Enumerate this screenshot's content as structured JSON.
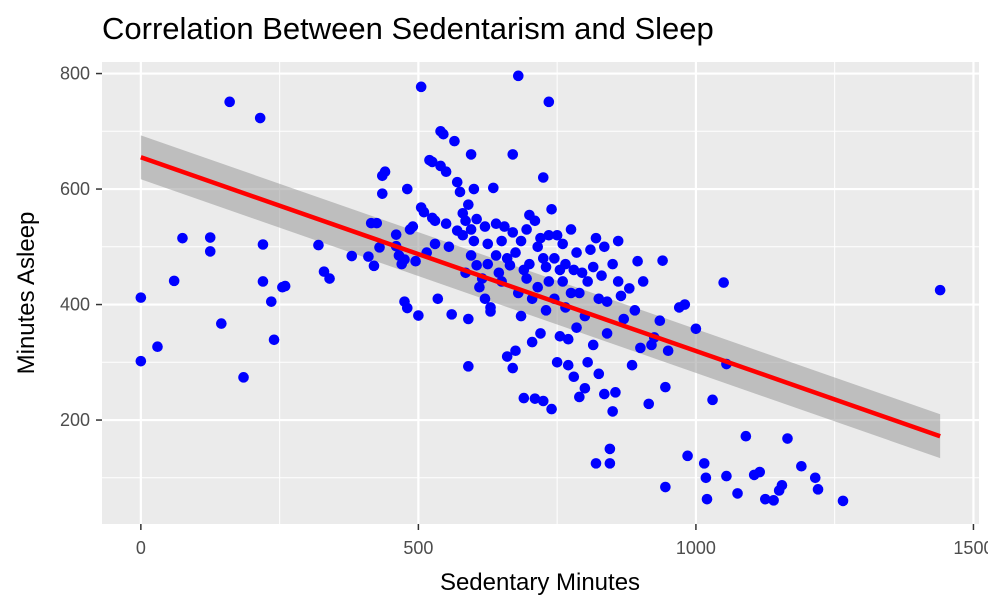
{
  "chart_data": {
    "type": "scatter",
    "title": "Correlation Between Sedentarism and Sleep",
    "xlabel": "Sedentary Minutes",
    "ylabel": "Minutes Asleep",
    "xlim": [
      -70,
      1510
    ],
    "ylim": [
      20,
      820
    ],
    "x_ticks": [
      0,
      500,
      1000,
      1500
    ],
    "y_ticks": [
      200,
      400,
      600,
      800
    ],
    "x_minor_ticks": [
      250,
      750,
      1250
    ],
    "y_minor_ticks": [
      100,
      300,
      500,
      700
    ],
    "grid": true,
    "legend": "none",
    "colors": {
      "points": "#0000FF",
      "trend": "#FF0000",
      "band": "#999999",
      "panel": "#EBEBEB",
      "gridline": "#FFFFFF"
    },
    "trend_line": {
      "x": [
        0,
        1440
      ],
      "y": [
        655,
        172
      ]
    },
    "confidence_band": {
      "x": [
        0,
        1440
      ],
      "upper": [
        693,
        210
      ],
      "lower": [
        617,
        134
      ]
    },
    "series": [
      {
        "points": [
          [
            0,
            412
          ],
          [
            0,
            302
          ],
          [
            30,
            327
          ],
          [
            60,
            441
          ],
          [
            75,
            515
          ],
          [
            125,
            516
          ],
          [
            125,
            492
          ],
          [
            145,
            367
          ],
          [
            160,
            751
          ],
          [
            185,
            274
          ],
          [
            215,
            723
          ],
          [
            220,
            504
          ],
          [
            220,
            440
          ],
          [
            235,
            405
          ],
          [
            240,
            339
          ],
          [
            255,
            430
          ],
          [
            260,
            432
          ],
          [
            320,
            503
          ],
          [
            330,
            457
          ],
          [
            340,
            445
          ],
          [
            380,
            484
          ],
          [
            410,
            483
          ],
          [
            415,
            541
          ],
          [
            420,
            467
          ],
          [
            425,
            541
          ],
          [
            430,
            499
          ],
          [
            435,
            592
          ],
          [
            435,
            623
          ],
          [
            440,
            630
          ],
          [
            460,
            521
          ],
          [
            460,
            501
          ],
          [
            465,
            485
          ],
          [
            470,
            470
          ],
          [
            475,
            405
          ],
          [
            475,
            478
          ],
          [
            480,
            394
          ],
          [
            480,
            600
          ],
          [
            485,
            530
          ],
          [
            490,
            535
          ],
          [
            495,
            475
          ],
          [
            500,
            381
          ],
          [
            505,
            777
          ],
          [
            505,
            568
          ],
          [
            510,
            560
          ],
          [
            515,
            490
          ],
          [
            520,
            650
          ],
          [
            525,
            647
          ],
          [
            525,
            550
          ],
          [
            530,
            545
          ],
          [
            530,
            505
          ],
          [
            535,
            410
          ],
          [
            540,
            700
          ],
          [
            540,
            640
          ],
          [
            545,
            695
          ],
          [
            550,
            630
          ],
          [
            550,
            540
          ],
          [
            555,
            500
          ],
          [
            560,
            383
          ],
          [
            565,
            683
          ],
          [
            570,
            612
          ],
          [
            570,
            528
          ],
          [
            575,
            595
          ],
          [
            580,
            520
          ],
          [
            580,
            558
          ],
          [
            585,
            545
          ],
          [
            585,
            455
          ],
          [
            590,
            375
          ],
          [
            590,
            293
          ],
          [
            590,
            573
          ],
          [
            595,
            530
          ],
          [
            595,
            485
          ],
          [
            595,
            660
          ],
          [
            600,
            600
          ],
          [
            600,
            510
          ],
          [
            605,
            548
          ],
          [
            605,
            468
          ],
          [
            610,
            430
          ],
          [
            615,
            445
          ],
          [
            620,
            535
          ],
          [
            620,
            410
          ],
          [
            625,
            505
          ],
          [
            625,
            470
          ],
          [
            630,
            395
          ],
          [
            630,
            388
          ],
          [
            635,
            602
          ],
          [
            640,
            540
          ],
          [
            640,
            485
          ],
          [
            645,
            455
          ],
          [
            650,
            510
          ],
          [
            650,
            440
          ],
          [
            655,
            535
          ],
          [
            660,
            310
          ],
          [
            660,
            480
          ],
          [
            665,
            468
          ],
          [
            670,
            290
          ],
          [
            670,
            660
          ],
          [
            670,
            525
          ],
          [
            675,
            490
          ],
          [
            675,
            320
          ],
          [
            680,
            796
          ],
          [
            680,
            420
          ],
          [
            685,
            510
          ],
          [
            685,
            380
          ],
          [
            690,
            238
          ],
          [
            690,
            460
          ],
          [
            695,
            530
          ],
          [
            695,
            445
          ],
          [
            700,
            555
          ],
          [
            700,
            470
          ],
          [
            705,
            335
          ],
          [
            705,
            410
          ],
          [
            710,
            545
          ],
          [
            710,
            237
          ],
          [
            715,
            500
          ],
          [
            715,
            430
          ],
          [
            720,
            515
          ],
          [
            720,
            350
          ],
          [
            725,
            620
          ],
          [
            725,
            480
          ],
          [
            725,
            233
          ],
          [
            730,
            465
          ],
          [
            730,
            390
          ],
          [
            735,
            751
          ],
          [
            735,
            520
          ],
          [
            735,
            440
          ],
          [
            740,
            565
          ],
          [
            740,
            219
          ],
          [
            745,
            480
          ],
          [
            745,
            410
          ],
          [
            750,
            300
          ],
          [
            750,
            520
          ],
          [
            755,
            460
          ],
          [
            755,
            345
          ],
          [
            760,
            505
          ],
          [
            760,
            440
          ],
          [
            765,
            470
          ],
          [
            765,
            395
          ],
          [
            770,
            295
          ],
          [
            770,
            340
          ],
          [
            775,
            530
          ],
          [
            775,
            420
          ],
          [
            780,
            460
          ],
          [
            780,
            275
          ],
          [
            785,
            490
          ],
          [
            785,
            360
          ],
          [
            790,
            240
          ],
          [
            790,
            420
          ],
          [
            795,
            455
          ],
          [
            800,
            380
          ],
          [
            800,
            255
          ],
          [
            805,
            440
          ],
          [
            805,
            300
          ],
          [
            810,
            495
          ],
          [
            815,
            465
          ],
          [
            815,
            330
          ],
          [
            820,
            125
          ],
          [
            820,
            515
          ],
          [
            825,
            410
          ],
          [
            825,
            280
          ],
          [
            830,
            450
          ],
          [
            835,
            500
          ],
          [
            835,
            245
          ],
          [
            840,
            405
          ],
          [
            840,
            350
          ],
          [
            845,
            125
          ],
          [
            845,
            150
          ],
          [
            850,
            470
          ],
          [
            850,
            215
          ],
          [
            855,
            248
          ],
          [
            860,
            510
          ],
          [
            860,
            440
          ],
          [
            865,
            415
          ],
          [
            870,
            375
          ],
          [
            880,
            428
          ],
          [
            885,
            295
          ],
          [
            890,
            390
          ],
          [
            895,
            475
          ],
          [
            900,
            325
          ],
          [
            905,
            440
          ],
          [
            915,
            228
          ],
          [
            920,
            330
          ],
          [
            925,
            343
          ],
          [
            935,
            372
          ],
          [
            940,
            476
          ],
          [
            945,
            84
          ],
          [
            945,
            257
          ],
          [
            950,
            320
          ],
          [
            970,
            395
          ],
          [
            980,
            400
          ],
          [
            985,
            138
          ],
          [
            1000,
            358
          ],
          [
            1015,
            125
          ],
          [
            1018,
            100
          ],
          [
            1020,
            63
          ],
          [
            1030,
            235
          ],
          [
            1050,
            438
          ],
          [
            1055,
            297
          ],
          [
            1055,
            103
          ],
          [
            1075,
            73
          ],
          [
            1090,
            172
          ],
          [
            1105,
            105
          ],
          [
            1115,
            110
          ],
          [
            1125,
            63
          ],
          [
            1140,
            61
          ],
          [
            1150,
            78
          ],
          [
            1155,
            87
          ],
          [
            1165,
            168
          ],
          [
            1190,
            120
          ],
          [
            1215,
            100
          ],
          [
            1220,
            80
          ],
          [
            1265,
            60
          ],
          [
            1440,
            425
          ]
        ]
      }
    ]
  }
}
